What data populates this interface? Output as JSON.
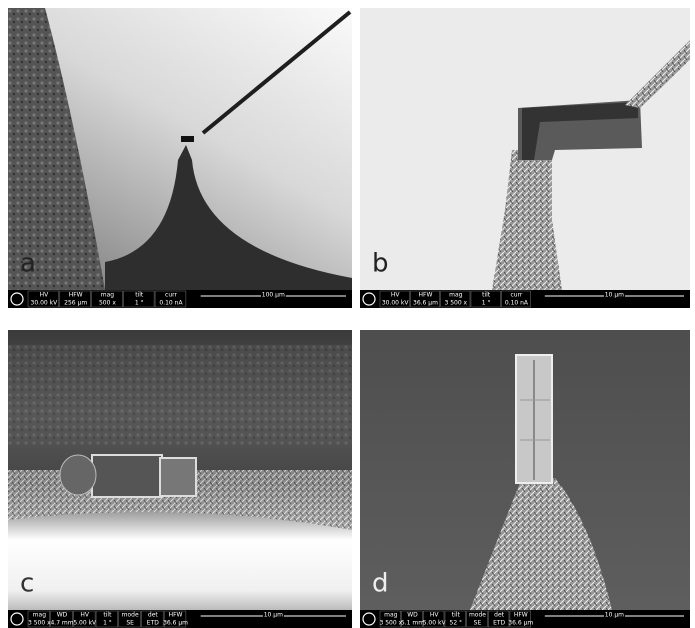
{
  "panels": [
    {
      "label": "a",
      "info": {
        "headers": [
          "HV",
          "HFW",
          "mag",
          "tilt",
          "curr"
        ],
        "values": [
          "30.00 kV",
          "256 µm",
          "500 x",
          "1 °",
          "0.10 nA"
        ],
        "scale": "100 µm"
      }
    },
    {
      "label": "b",
      "info": {
        "headers": [
          "HV",
          "HFW",
          "mag",
          "tilt",
          "curr"
        ],
        "values": [
          "30.00 kV",
          "36.6 µm",
          "3 500 x",
          "1 °",
          "0.10 nA"
        ],
        "scale": "10 µm"
      }
    },
    {
      "label": "c",
      "info": {
        "headers": [
          "mag",
          "WD",
          "HV",
          "tilt",
          "mode",
          "det",
          "HFW"
        ],
        "values": [
          "3 500 x",
          "4.7 mm",
          "5.00 kV",
          "1 °",
          "SE",
          "ETD",
          "36.6 µm"
        ],
        "scale": "10 µm"
      }
    },
    {
      "label": "d",
      "info": {
        "headers": [
          "mag",
          "WD",
          "HV",
          "tilt",
          "mode",
          "det",
          "HFW"
        ],
        "values": [
          "3 500 x",
          "5.1 mm",
          "5.00 kV",
          "52 °",
          "SE",
          "ETD",
          "36.6 µm"
        ],
        "scale": "10 µm"
      }
    }
  ]
}
